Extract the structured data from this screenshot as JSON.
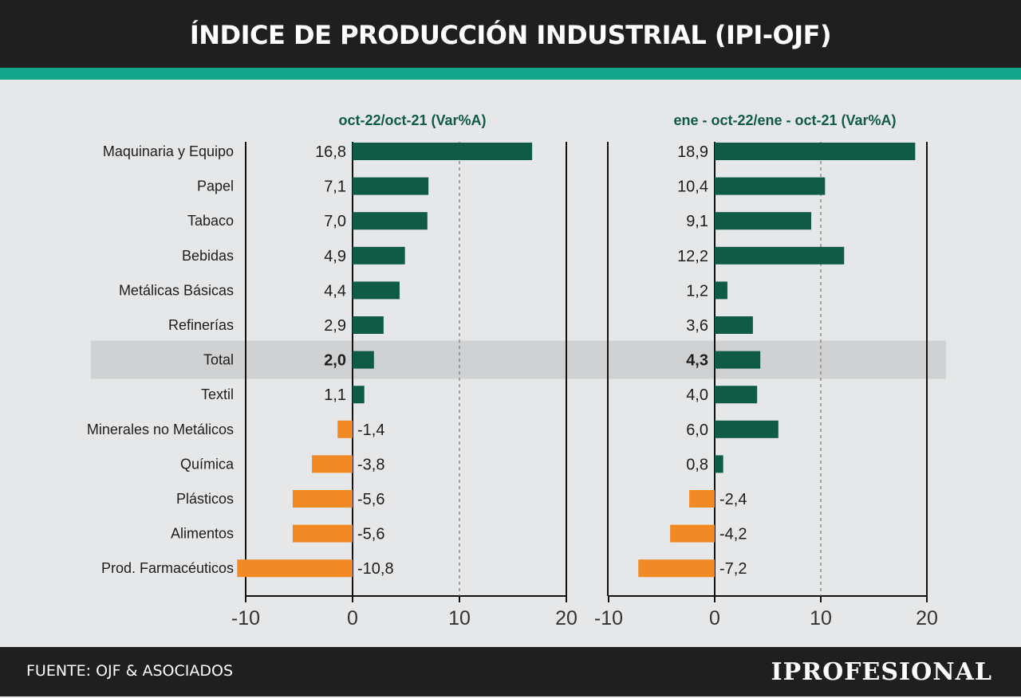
{
  "header": {
    "title": "ÍNDICE DE PRODUCCIÓN INDUSTRIAL (IPI-OJF)"
  },
  "footer": {
    "source": "FUENTE: OJF & ASOCIADOS",
    "brand": "IPROFESIONAL"
  },
  "colors": {
    "positive": "#0f5b45",
    "negative": "#f18a25",
    "accent": "#13a58b",
    "highlight_band": "#d0d1d2",
    "header_bg": "#1f1f1f",
    "panel_title": "#0f5b45"
  },
  "chart_data": {
    "type": "bar",
    "orientation": "horizontal",
    "categories": [
      "Maquinaria y Equipo",
      "Papel",
      "Tabaco",
      "Bebidas",
      "Metálicas Básicas",
      "Refinerías",
      "Total",
      "Textil",
      "Minerales no Metálicos",
      "Química",
      "Plásticos",
      "Alimentos",
      "Prod. Farmacéuticos"
    ],
    "highlight_category": "Total",
    "panels": [
      {
        "title": "oct-22/oct-21  (Var%A)",
        "values": [
          16.8,
          7.1,
          7.0,
          4.9,
          4.4,
          2.9,
          2.0,
          1.1,
          -1.4,
          -3.8,
          -5.6,
          -5.6,
          -10.8
        ],
        "labels": [
          "16,8",
          "7,1",
          "7,0",
          "4,9",
          "4,4",
          "2,9",
          "2,0",
          "1,1",
          "-1,4",
          "-3,8",
          "-5,6",
          "-5,6",
          "-10,8"
        ],
        "xlim": [
          -10,
          20
        ],
        "ticks": [
          -10,
          0,
          10,
          20
        ],
        "tick_labels": [
          "-10",
          "0",
          "10",
          "20"
        ],
        "reference_line": 10
      },
      {
        "title": "ene - oct-22/ene - oct-21  (Var%A)",
        "values": [
          18.9,
          10.4,
          9.1,
          12.2,
          1.2,
          3.6,
          4.3,
          4.0,
          6.0,
          0.8,
          -2.4,
          -4.2,
          -7.2
        ],
        "labels": [
          "18,9",
          "10,4",
          "9,1",
          "12,2",
          "1,2",
          "3,6",
          "4,3",
          "4,0",
          "6,0",
          "0,8",
          "-2,4",
          "-4,2",
          "-7,2"
        ],
        "xlim": [
          -10,
          20
        ],
        "ticks": [
          -10,
          0,
          10,
          20
        ],
        "tick_labels": [
          "-10",
          "0",
          "10",
          "20"
        ],
        "reference_line": 10
      }
    ]
  }
}
